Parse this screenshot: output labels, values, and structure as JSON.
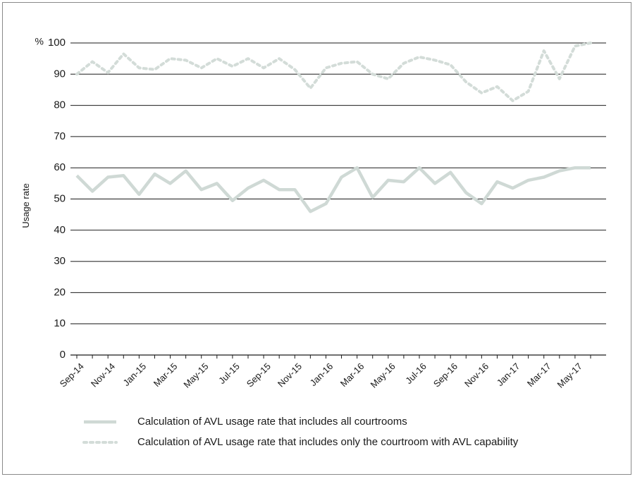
{
  "chart_data": {
    "type": "line",
    "title": "",
    "ylabel": "Usage rate",
    "yunit": "%",
    "ylim": [
      0,
      100
    ],
    "yticks": [
      0,
      10,
      20,
      30,
      40,
      50,
      60,
      70,
      80,
      90,
      100
    ],
    "xtick_labels": [
      "Sep-14",
      "Nov-14",
      "Jan-15",
      "Mar-15",
      "May-15",
      "Jul-15",
      "Sep-15",
      "Nov-15",
      "Jan-16",
      "Mar-16",
      "May-16",
      "Jul-16",
      "Sep-16",
      "Nov-16",
      "Jan-17",
      "Mar-17",
      "May-17"
    ],
    "categories": [
      "Sep-14",
      "Oct-14",
      "Nov-14",
      "Dec-14",
      "Jan-15",
      "Feb-15",
      "Mar-15",
      "Apr-15",
      "May-15",
      "Jun-15",
      "Jul-15",
      "Aug-15",
      "Sep-15",
      "Oct-15",
      "Nov-15",
      "Dec-15",
      "Jan-16",
      "Feb-16",
      "Mar-16",
      "Apr-16",
      "May-16",
      "Jun-16",
      "Jul-16",
      "Aug-16",
      "Sep-16",
      "Oct-16",
      "Nov-16",
      "Dec-16",
      "Jan-17",
      "Feb-17",
      "Mar-17",
      "Apr-17",
      "May-17",
      "Jun-17"
    ],
    "grid": true,
    "legend_position": "bottom",
    "series": [
      {
        "name": "Calculation of AVL usage rate that includes all courtrooms",
        "style": "solid",
        "color": "#cfd9d5",
        "values": [
          57.5,
          52.5,
          57,
          57.5,
          51.5,
          58,
          55,
          59,
          53,
          55,
          49.5,
          53.5,
          56,
          53,
          53,
          46,
          48.5,
          57,
          60,
          50.5,
          56,
          55.5,
          60,
          55,
          58.5,
          52,
          48.5,
          55.5,
          53.5,
          56,
          57,
          59,
          60,
          60
        ]
      },
      {
        "name": "Calculation of AVL usage rate that includes only the courtroom with AVL capability",
        "style": "dotted",
        "color": "#d3dcd8",
        "values": [
          90,
          94,
          90.5,
          96.5,
          92,
          91.5,
          95,
          94.5,
          92,
          95,
          92.5,
          95,
          92,
          95,
          91.5,
          85.5,
          92,
          93.5,
          94,
          90,
          88.5,
          93.5,
          95.5,
          94.5,
          93,
          87.5,
          84,
          86,
          81.5,
          84.5,
          97.5,
          88.5,
          99,
          100
        ]
      }
    ]
  }
}
